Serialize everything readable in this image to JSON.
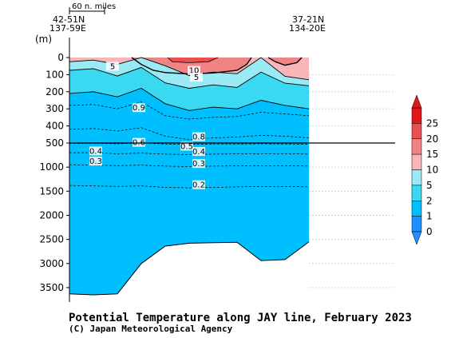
{
  "chart_data": {
    "type": "heatmap",
    "title": "Potential Temperature along JAY line, February 2023",
    "credit": "(C) Japan Meteorological Agency",
    "scale_bar_label": "60 n. miles",
    "y_unit": "(m)",
    "station_start": {
      "lat": "42-51N",
      "lon": "137-59E"
    },
    "station_end": {
      "lat": "37-21N",
      "lon": "134-20E"
    },
    "y_ticks_upper": [
      "0",
      "100",
      "200",
      "300",
      "400",
      "500"
    ],
    "y_ticks_lower": [
      "1000",
      "1500",
      "2000",
      "2500",
      "3000",
      "3500"
    ],
    "upper_ylim": [
      0,
      500
    ],
    "lower_ylim": [
      500,
      3800
    ],
    "x_range": [
      0,
      10
    ],
    "colorbar": {
      "ticks": [
        "0",
        "1",
        "2",
        "5",
        "10",
        "15",
        "20",
        "25"
      ],
      "colors": [
        "#1e90ff",
        "#00bfff",
        "#3ad9f2",
        "#99eaf4",
        "#f7b7ba",
        "#f08484",
        "#ea5050",
        "#e21818"
      ]
    },
    "contour_labels": [
      "5",
      "10",
      "5",
      "0.9",
      "0.8",
      "0.6",
      "0.5",
      "0.4",
      "0.4",
      "0.3",
      "0.3",
      "0.2"
    ],
    "series": [
      {
        "name": "5",
        "values": [
          [
            0,
            25
          ],
          [
            1,
            15
          ],
          [
            2,
            40
          ],
          [
            3,
            0
          ],
          [
            4,
            48
          ],
          [
            5,
            105
          ],
          [
            6,
            85
          ],
          [
            7,
            95
          ],
          [
            8,
            0
          ],
          [
            9,
            110
          ],
          [
            10,
            130
          ]
        ]
      },
      {
        "name": "2",
        "values": [
          [
            0,
            75
          ],
          [
            1,
            65
          ],
          [
            2,
            108
          ],
          [
            3,
            58
          ],
          [
            4,
            148
          ],
          [
            5,
            180
          ],
          [
            6,
            160
          ],
          [
            7,
            175
          ],
          [
            8,
            85
          ],
          [
            9,
            150
          ],
          [
            10,
            165
          ]
        ]
      },
      {
        "name": "1",
        "values": [
          [
            0,
            210
          ],
          [
            1,
            200
          ],
          [
            2,
            230
          ],
          [
            3,
            180
          ],
          [
            4,
            270
          ],
          [
            5,
            310
          ],
          [
            6,
            290
          ],
          [
            7,
            300
          ],
          [
            8,
            250
          ],
          [
            9,
            280
          ],
          [
            10,
            300
          ]
        ]
      },
      {
        "name": "0.9",
        "values": [
          [
            0,
            280
          ],
          [
            1,
            275
          ],
          [
            2,
            300
          ],
          [
            3,
            260
          ],
          [
            4,
            340
          ],
          [
            5,
            360
          ],
          [
            6,
            350
          ],
          [
            7,
            345
          ],
          [
            8,
            320
          ],
          [
            9,
            330
          ],
          [
            10,
            340
          ]
        ]
      },
      {
        "name": "0.8",
        "values": [
          [
            0,
            420
          ],
          [
            1,
            415
          ],
          [
            2,
            430
          ],
          [
            3,
            410
          ],
          [
            4,
            460
          ],
          [
            5,
            480
          ],
          [
            6,
            470
          ],
          [
            7,
            465
          ],
          [
            8,
            455
          ],
          [
            9,
            460
          ],
          [
            10,
            470
          ]
        ]
      },
      {
        "name": "0.6",
        "values": [
          [
            0,
            510
          ],
          [
            1,
            505
          ],
          [
            2,
            515
          ],
          [
            3,
            500
          ],
          [
            4,
            520
          ],
          [
            5,
            530
          ],
          [
            6,
            520
          ],
          [
            7,
            520
          ],
          [
            8,
            515
          ],
          [
            9,
            520
          ],
          [
            10,
            525
          ]
        ]
      },
      {
        "name": "0.4",
        "values": [
          [
            0,
            700
          ],
          [
            1,
            700
          ],
          [
            2,
            720
          ],
          [
            3,
            710
          ],
          [
            4,
            730
          ],
          [
            5,
            740
          ],
          [
            6,
            730
          ],
          [
            7,
            725
          ],
          [
            8,
            720
          ],
          [
            9,
            720
          ],
          [
            10,
            730
          ]
        ]
      },
      {
        "name": "0.3",
        "values": [
          [
            0,
            950
          ],
          [
            1,
            960
          ],
          [
            2,
            970
          ],
          [
            3,
            960
          ],
          [
            4,
            980
          ],
          [
            5,
            990
          ],
          [
            6,
            980
          ],
          [
            7,
            975
          ],
          [
            8,
            970
          ],
          [
            9,
            970
          ],
          [
            10,
            980
          ]
        ]
      },
      {
        "name": "0.2",
        "values": [
          [
            0,
            1380
          ],
          [
            1,
            1390
          ],
          [
            2,
            1400
          ],
          [
            3,
            1390
          ],
          [
            4,
            1420
          ],
          [
            5,
            1430
          ],
          [
            6,
            1420
          ],
          [
            7,
            1410
          ],
          [
            8,
            1400
          ],
          [
            9,
            1400
          ],
          [
            10,
            1410
          ]
        ]
      }
    ],
    "bottom_depth": [
      [
        0,
        3630
      ],
      [
        1,
        3650
      ],
      [
        2,
        3630
      ],
      [
        3,
        3000
      ],
      [
        4,
        2640
      ],
      [
        5,
        2580
      ],
      [
        6,
        2570
      ],
      [
        7,
        2560
      ],
      [
        8,
        2940
      ],
      [
        9,
        2920
      ],
      [
        10,
        2550
      ]
    ]
  }
}
